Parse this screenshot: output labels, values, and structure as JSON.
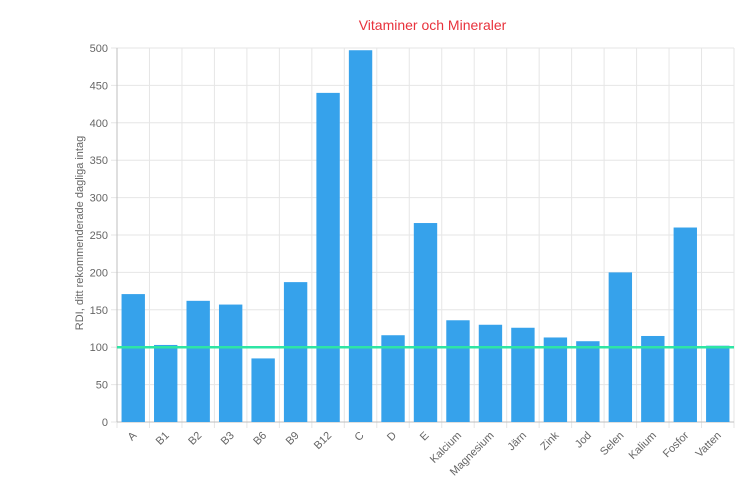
{
  "chart_data": {
    "type": "bar",
    "title": "Vitaminer och Mineraler",
    "xlabel": "",
    "ylabel": "RDI, ditt rekommenderade dagliga intag",
    "categories": [
      "A",
      "B1",
      "B2",
      "B3",
      "B6",
      "B9",
      "B12",
      "C",
      "D",
      "E",
      "Kalcium",
      "Magnesium",
      "Järn",
      "Zink",
      "Jod",
      "Selen",
      "Kalium",
      "Fosfor",
      "Vatten"
    ],
    "values": [
      171,
      103,
      162,
      157,
      85,
      187,
      440,
      497,
      116,
      266,
      136,
      130,
      126,
      113,
      108,
      200,
      115,
      260,
      102
    ],
    "ylim": [
      0,
      500
    ],
    "yticks": [
      0,
      50,
      100,
      150,
      200,
      250,
      300,
      350,
      400,
      450,
      500
    ],
    "reference_line": 100,
    "grid": true,
    "legend": "none",
    "colors": {
      "bar": "#36a2eb",
      "reference_line": "#2ee5a4",
      "grid": "#e6e6e6",
      "title": "#e8323c",
      "text": "#666666",
      "axis": "#bfbfbf"
    }
  }
}
